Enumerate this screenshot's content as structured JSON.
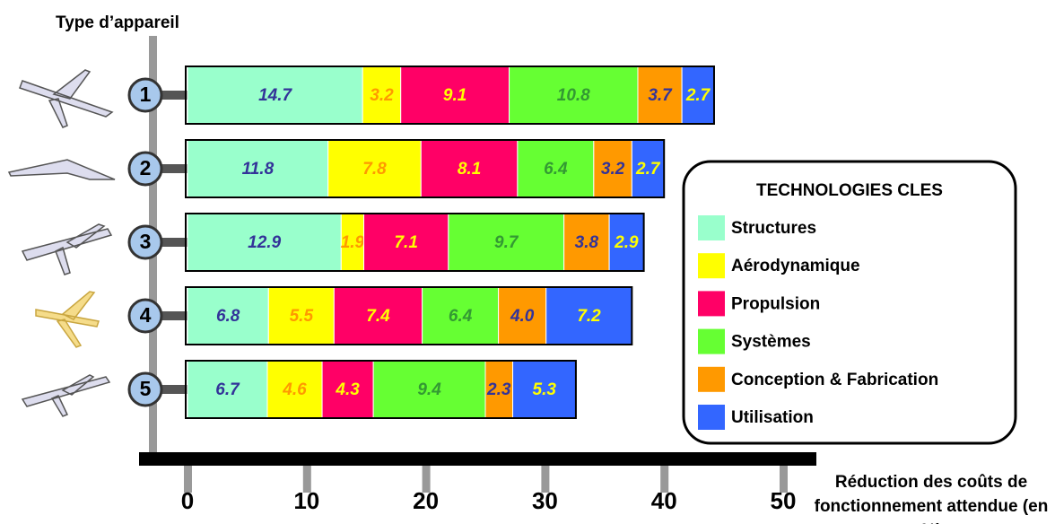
{
  "chart_data": {
    "type": "stacked-barh",
    "y_label": "Type d’appareil",
    "x_label": "Réduction des coûts de fonctionnement attendue (en %)",
    "legend_title": "TECHNOLOGIES CLES",
    "legend_position": "right",
    "categories": [
      "1",
      "2",
      "3",
      "4",
      "5"
    ],
    "series": [
      {
        "name": "Structures",
        "color": "#99ffcc",
        "label_color": "#333399",
        "values": [
          14.7,
          11.8,
          12.9,
          6.8,
          6.7
        ]
      },
      {
        "name": "Aérodynamique",
        "color": "#ffff00",
        "label_color": "#ff9900",
        "values": [
          3.2,
          7.8,
          1.9,
          5.5,
          4.6
        ]
      },
      {
        "name": "Propulsion",
        "color": "#ff0066",
        "label_color": "#ffff00",
        "values": [
          9.1,
          8.1,
          7.1,
          7.4,
          4.3
        ]
      },
      {
        "name": "Systèmes",
        "color": "#66ff33",
        "label_color": "#339933",
        "values": [
          10.8,
          6.4,
          9.7,
          6.4,
          9.4
        ]
      },
      {
        "name": "Conception & Fabrication",
        "color": "#ff9900",
        "label_color": "#333399",
        "values": [
          3.7,
          3.2,
          3.8,
          4.0,
          2.3
        ],
        "value_labels": [
          "3.7",
          "3.2",
          "3.8",
          "4.0",
          "2.3"
        ]
      },
      {
        "name": "Utilisation",
        "color": "#3366ff",
        "label_color": "#ffff00",
        "values": [
          2.7,
          2.7,
          2.9,
          7.2,
          5.3
        ]
      }
    ],
    "xlim": [
      0,
      50
    ],
    "xticks": [
      0,
      10,
      20,
      30,
      40,
      50
    ]
  }
}
